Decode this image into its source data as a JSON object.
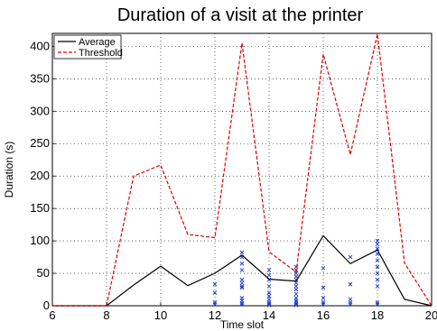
{
  "chart_data": {
    "type": "line",
    "title": "Duration of a visit at the printer",
    "xlabel": "Time slot",
    "ylabel": "Duration (s)",
    "xlim": [
      6,
      20
    ],
    "ylim": [
      0,
      420
    ],
    "xticks": [
      6,
      8,
      10,
      12,
      14,
      16,
      18,
      20
    ],
    "yticks": [
      0,
      50,
      100,
      150,
      200,
      250,
      300,
      350,
      400
    ],
    "grid": true,
    "legend_position": "top-left",
    "series": [
      {
        "name": "Average",
        "color": "#000000",
        "style": "solid",
        "x": [
          6,
          7,
          8,
          9,
          10,
          11,
          12,
          13,
          14,
          15,
          16,
          17,
          18,
          19,
          20
        ],
        "y": [
          0,
          0,
          0,
          32,
          61,
          31,
          50,
          78,
          41,
          38,
          108,
          65,
          86,
          10,
          0
        ]
      },
      {
        "name": "Threshold",
        "color": "#e00000",
        "style": "dashed",
        "x": [
          6,
          7,
          8,
          9,
          10,
          11,
          12,
          13,
          14,
          15,
          16,
          17,
          18,
          19,
          20
        ],
        "y": [
          0,
          0,
          0,
          200,
          217,
          110,
          105,
          405,
          83,
          52,
          388,
          233,
          419,
          66,
          0
        ]
      }
    ],
    "points": {
      "color": "#2040d0",
      "marker": "x",
      "x": [
        12,
        12,
        12,
        12,
        13,
        13,
        13,
        13,
        13,
        13,
        13,
        13,
        13,
        13,
        13,
        13,
        14,
        14,
        14,
        14,
        14,
        14,
        14,
        14,
        14,
        14,
        15,
        15,
        15,
        15,
        15,
        15,
        15,
        15,
        15,
        15,
        15,
        15,
        15,
        15,
        16,
        16,
        16,
        16,
        16,
        17,
        17,
        17,
        17,
        17,
        18,
        18,
        18,
        18,
        18,
        18,
        18,
        18,
        18,
        18,
        18
      ],
      "y": [
        33,
        20,
        5,
        2,
        82,
        75,
        65,
        55,
        40,
        35,
        30,
        28,
        12,
        8,
        4,
        2,
        55,
        47,
        40,
        30,
        20,
        15,
        10,
        5,
        3,
        1,
        60,
        55,
        50,
        45,
        40,
        35,
        30,
        25,
        18,
        12,
        8,
        5,
        3,
        1,
        58,
        28,
        12,
        5,
        2,
        75,
        33,
        10,
        5,
        2,
        100,
        95,
        88,
        80,
        70,
        60,
        50,
        40,
        30,
        5,
        2
      ]
    }
  }
}
